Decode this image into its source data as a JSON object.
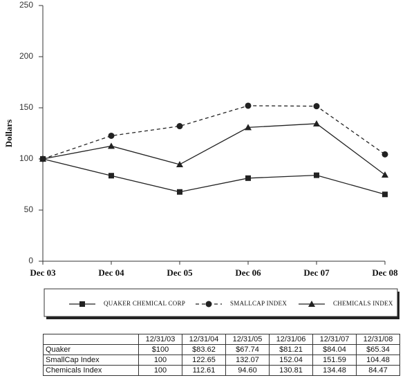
{
  "chart_data": {
    "type": "line",
    "ylabel": "Dollars",
    "categories": [
      "Dec 03",
      "Dec 04",
      "Dec 05",
      "Dec 06",
      "Dec 07",
      "Dec 08"
    ],
    "series": [
      {
        "name": "QUAKER CHEMICAL CORP",
        "color": "#222222",
        "marker": "square",
        "dashed": false,
        "values": [
          100,
          83.62,
          67.74,
          81.21,
          84.04,
          65.34
        ]
      },
      {
        "name": "SMALLCAP INDEX",
        "color": "#222222",
        "marker": "circle",
        "dashed": true,
        "values": [
          100,
          122.65,
          132.07,
          152.04,
          151.59,
          104.48
        ]
      },
      {
        "name": "CHEMICALS INDEX",
        "color": "#222222",
        "marker": "triangle",
        "dashed": false,
        "values": [
          100,
          112.61,
          94.6,
          130.81,
          134.48,
          84.47
        ]
      }
    ],
    "ylim": [
      0,
      250
    ],
    "yticks": [
      0,
      50,
      100,
      150,
      200,
      250
    ],
    "grid": false
  },
  "table": {
    "header": [
      "12/31/03",
      "12/31/04",
      "12/31/05",
      "12/31/06",
      "12/31/07",
      "12/31/08"
    ],
    "rows": [
      [
        "Quaker",
        "$100",
        "$83.62",
        "$67.74",
        "$81.21",
        "$84.04",
        "$65.34"
      ],
      [
        "SmallCap Index",
        "100",
        "122.65",
        "132.07",
        "152.04",
        "151.59",
        "104.48"
      ],
      [
        "Chemicals Index",
        "100",
        "112.61",
        "94.60",
        "130.81",
        "134.48",
        "84.47"
      ]
    ]
  }
}
